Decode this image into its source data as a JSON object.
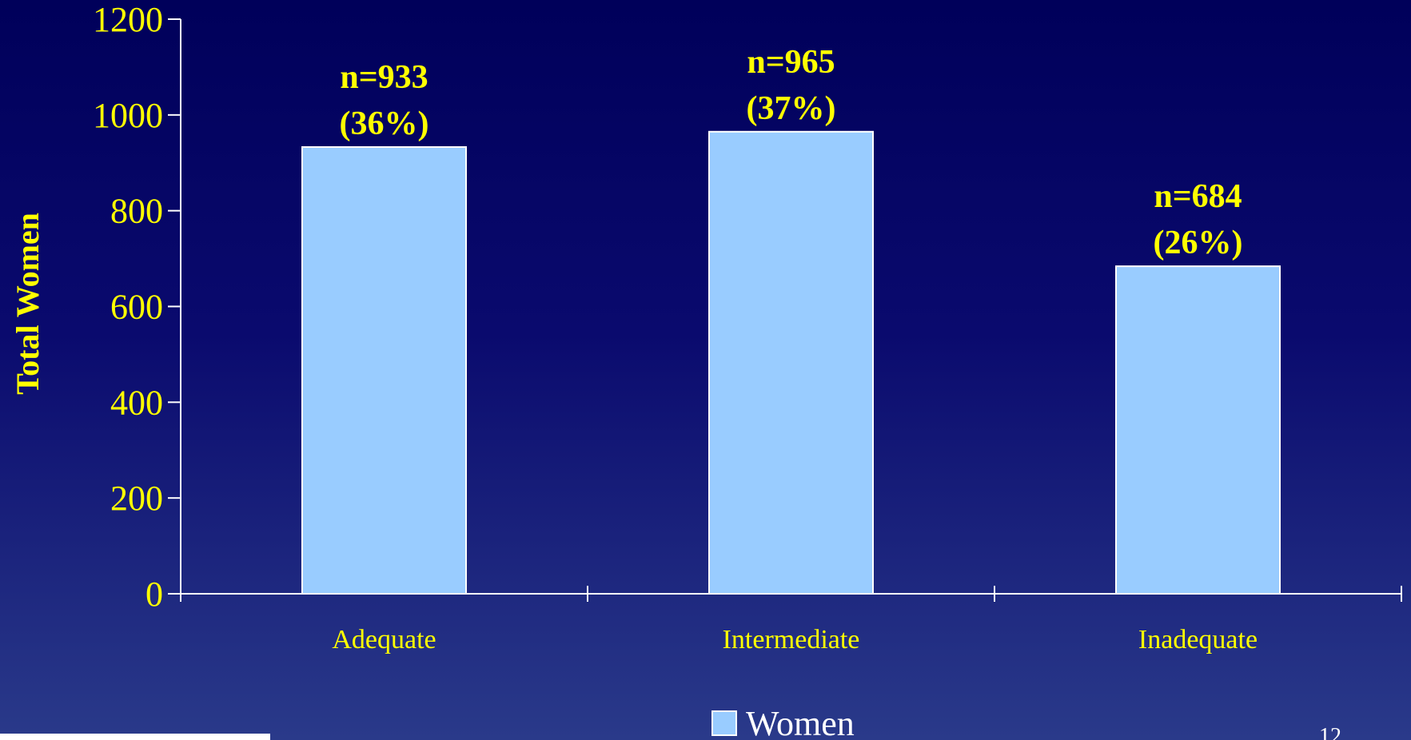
{
  "chart_data": {
    "type": "bar",
    "categories": [
      "Adequate",
      "Intermediate",
      "Inadequate"
    ],
    "series": [
      {
        "name": "Women",
        "values": [
          933,
          965,
          684
        ],
        "color": "#99ccff"
      }
    ],
    "data_labels": [
      [
        "n=933",
        "(36%)"
      ],
      [
        "n=965",
        "(37%)"
      ],
      [
        "n=684",
        "(26%)"
      ]
    ],
    "ylabel": "Total Women",
    "ylim": [
      0,
      1200
    ],
    "yticks": [
      0,
      200,
      400,
      600,
      800,
      1000,
      1200
    ],
    "grid": false,
    "legend_placement": "bottom-center"
  },
  "page_number": "12",
  "colors": {
    "text_accent": "#ffff00",
    "bar_fill": "#99ccff",
    "axis": "#ffffff"
  }
}
